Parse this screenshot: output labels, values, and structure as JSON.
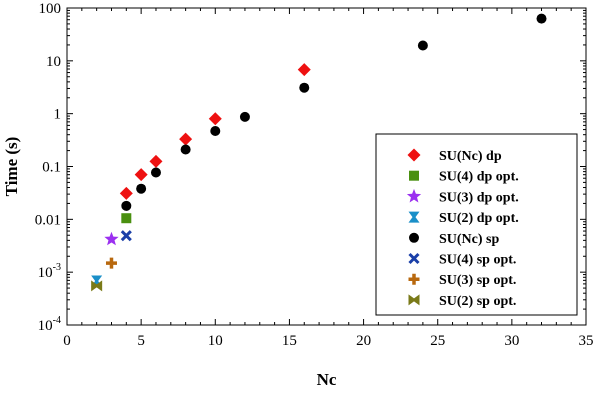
{
  "chart_data": {
    "type": "scatter",
    "xlabel": "Nc",
    "ylabel": "Time (s)",
    "xlim": [
      0,
      35
    ],
    "ylim": [
      0.0001,
      100
    ],
    "yscale": "log",
    "grid": false,
    "legend_position": "right",
    "x_ticks": [
      0,
      5,
      10,
      15,
      20,
      25,
      30,
      35
    ],
    "x_tick_labels": [
      "0",
      "5",
      "10",
      "15",
      "20",
      "25",
      "30",
      "35"
    ],
    "y_ticks": [
      0.0001,
      0.001,
      0.01,
      0.1,
      1,
      10,
      100
    ],
    "y_tick_labels": [
      {
        "base": "10",
        "exp": "-4"
      },
      {
        "base": "10",
        "exp": "-3"
      },
      {
        "base": "0.01",
        "exp": ""
      },
      {
        "base": "0.1",
        "exp": ""
      },
      {
        "base": "1",
        "exp": ""
      },
      {
        "base": "10",
        "exp": ""
      },
      {
        "base": "100",
        "exp": ""
      }
    ],
    "series": [
      {
        "name": "SU(Nc) dp",
        "marker": "diamond",
        "color": "#ee1111",
        "points": [
          [
            4,
            0.031
          ],
          [
            5,
            0.07
          ],
          [
            6,
            0.125
          ],
          [
            8,
            0.33
          ],
          [
            10,
            0.8
          ],
          [
            16,
            6.8
          ]
        ]
      },
      {
        "name": "SU(4) dp opt.",
        "marker": "square",
        "color": "#4a9010",
        "points": [
          [
            4,
            0.0105
          ]
        ]
      },
      {
        "name": "SU(3) dp opt.",
        "marker": "star",
        "color": "#9b30f0",
        "points": [
          [
            3,
            0.0042
          ]
        ]
      },
      {
        "name": "SU(2) dp opt.",
        "marker": "hourglass",
        "color": "#1a8fc8",
        "points": [
          [
            2,
            0.00068
          ]
        ]
      },
      {
        "name": "SU(Nc) sp",
        "marker": "circle",
        "color": "#000000",
        "points": [
          [
            4,
            0.018
          ],
          [
            5,
            0.038
          ],
          [
            6,
            0.077
          ],
          [
            8,
            0.21
          ],
          [
            10,
            0.47
          ],
          [
            12,
            0.87
          ],
          [
            16,
            3.1
          ],
          [
            24,
            19.5
          ],
          [
            32,
            63
          ]
        ]
      },
      {
        "name": "SU(4) sp opt.",
        "marker": "x",
        "color": "#1a3fa8",
        "points": [
          [
            4,
            0.0049
          ]
        ]
      },
      {
        "name": "SU(3) sp opt.",
        "marker": "plus",
        "color": "#b8680e",
        "points": [
          [
            3,
            0.00148
          ]
        ]
      },
      {
        "name": "SU(2) sp opt.",
        "marker": "bowtie",
        "color": "#7a7a18",
        "points": [
          [
            2,
            0.00055
          ]
        ]
      }
    ]
  }
}
